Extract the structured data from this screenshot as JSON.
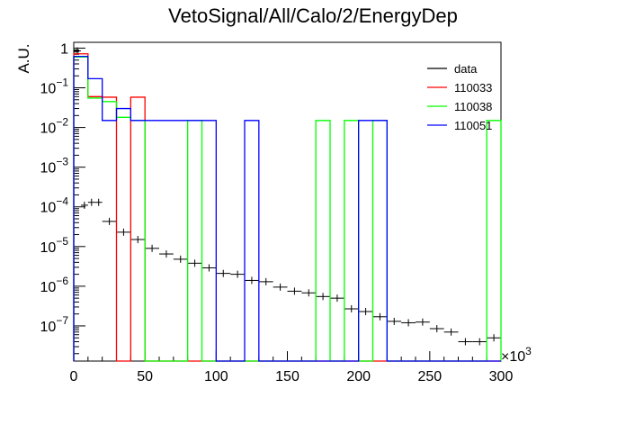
{
  "chart_data": {
    "type": "histogram",
    "title": "VetoSignal/All/Calo/2/EnergyDep",
    "xlabel": "",
    "ylabel": "A.U.",
    "x_multiplier": "×10",
    "x_multiplier_exp": "3",
    "xlim": [
      0,
      300
    ],
    "ylim": [
      1.3e-08,
      1.4
    ],
    "yscale": "log",
    "xticks": [
      0,
      50,
      100,
      150,
      200,
      250,
      300
    ],
    "xtick_labels": [
      "0",
      "50",
      "100",
      "150",
      "200",
      "250",
      "300"
    ],
    "yticks": [
      1e-07,
      1e-06,
      1e-05,
      0.0001,
      0.001,
      0.01,
      0.1,
      1
    ],
    "ytick_bases": [
      "10",
      "10",
      "10",
      "10",
      "10",
      "10",
      "10",
      "1"
    ],
    "ytick_exps": [
      "−7",
      "−6",
      "−5",
      "−4",
      "−3",
      "−2",
      "−1",
      ""
    ],
    "bin_width": 10,
    "legend_position": "top-right",
    "series": [
      {
        "name": "data",
        "color": "#000000",
        "style": "points",
        "points": [
          {
            "x": 2.5,
            "y": 0.85,
            "xerr": 2.5
          },
          {
            "x": 7.5,
            "y": 0.00011,
            "xerr": 2.5
          },
          {
            "x": 12.5,
            "y": 0.00013,
            "xerr": 2.5
          },
          {
            "x": 17.5,
            "y": 0.00013,
            "xerr": 2.5
          },
          {
            "x": 25,
            "y": 4.3e-05,
            "xerr": 5
          },
          {
            "x": 35,
            "y": 2.3e-05,
            "xerr": 5
          },
          {
            "x": 45,
            "y": 1.5e-05,
            "xerr": 5
          },
          {
            "x": 55,
            "y": 9e-06,
            "xerr": 5
          },
          {
            "x": 65,
            "y": 6.5e-06,
            "xerr": 5
          },
          {
            "x": 75,
            "y": 4.8e-06,
            "xerr": 5
          },
          {
            "x": 85,
            "y": 3.8e-06,
            "xerr": 5
          },
          {
            "x": 95,
            "y": 2.9e-06,
            "xerr": 5
          },
          {
            "x": 105,
            "y": 2.1e-06,
            "xerr": 5
          },
          {
            "x": 115,
            "y": 2e-06,
            "xerr": 5
          },
          {
            "x": 125,
            "y": 1.4e-06,
            "xerr": 5
          },
          {
            "x": 135,
            "y": 1.3e-06,
            "xerr": 5
          },
          {
            "x": 145,
            "y": 9.5e-07,
            "xerr": 5
          },
          {
            "x": 155,
            "y": 7.5e-07,
            "xerr": 5
          },
          {
            "x": 165,
            "y": 6.8e-07,
            "xerr": 5
          },
          {
            "x": 175,
            "y": 5.5e-07,
            "xerr": 5
          },
          {
            "x": 185,
            "y": 5e-07,
            "xerr": 5
          },
          {
            "x": 195,
            "y": 2.7e-07,
            "xerr": 5
          },
          {
            "x": 205,
            "y": 2.3e-07,
            "xerr": 5
          },
          {
            "x": 215,
            "y": 1.7e-07,
            "xerr": 5
          },
          {
            "x": 225,
            "y": 1.3e-07,
            "xerr": 5
          },
          {
            "x": 235,
            "y": 1.2e-07,
            "xerr": 5
          },
          {
            "x": 245,
            "y": 1.25e-07,
            "xerr": 5
          },
          {
            "x": 255,
            "y": 8.5e-08,
            "xerr": 5
          },
          {
            "x": 265,
            "y": 7e-08,
            "xerr": 5
          },
          {
            "x": 275,
            "y": 4e-08,
            "xerr": 5
          },
          {
            "x": 285,
            "y": 4e-08,
            "xerr": 5
          },
          {
            "x": 295,
            "y": 5e-08,
            "xerr": 5
          }
        ]
      },
      {
        "name": "110033",
        "color": "#ff0000",
        "style": "step",
        "values": [
          0.72,
          0.06,
          0.058,
          0,
          0.058,
          0,
          0,
          0,
          0,
          0,
          0,
          0,
          0,
          0,
          0,
          0,
          0,
          0,
          0,
          0,
          0,
          0,
          0,
          0,
          0,
          0,
          0,
          0,
          0,
          0
        ]
      },
      {
        "name": "110038",
        "color": "#00ff00",
        "style": "step",
        "values": [
          0.6,
          0.055,
          0.045,
          0.018,
          0.015,
          0,
          0,
          0,
          0.015,
          0,
          0,
          0,
          0,
          0,
          0,
          0,
          0,
          0.015,
          0,
          0.015,
          0,
          0.015,
          0,
          0,
          0,
          0,
          0,
          0,
          0,
          0.015
        ]
      },
      {
        "name": "110051",
        "color": "#0000ff",
        "style": "step",
        "values": [
          0.62,
          0.17,
          0.015,
          0.03,
          0.015,
          0.015,
          0.015,
          0.015,
          0.015,
          0.015,
          0,
          0,
          0.015,
          0,
          0,
          0,
          0,
          0,
          0,
          0,
          0.015,
          0.015,
          0,
          0,
          0,
          0,
          0,
          0,
          0,
          0
        ]
      }
    ]
  }
}
